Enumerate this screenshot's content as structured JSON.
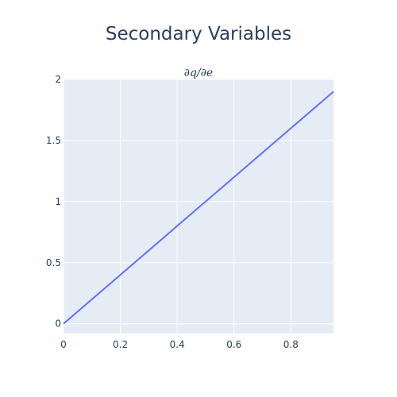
{
  "chart_data": {
    "type": "line",
    "title": "Secondary Variables",
    "subplot_title": "∂q/∂e",
    "xlabel": "",
    "ylabel": "",
    "xlim": [
      0,
      0.95
    ],
    "ylim": [
      -0.08,
      2
    ],
    "x_ticks": [
      0,
      0.2,
      0.4,
      0.6,
      0.8
    ],
    "x_tick_labels": [
      "0",
      "0.2",
      "0.4",
      "0.6",
      "0.8"
    ],
    "y_ticks": [
      0,
      0.5,
      1,
      1.5,
      2
    ],
    "y_tick_labels": [
      "0",
      "0.5",
      "1",
      "1.5",
      "2"
    ],
    "grid": true,
    "series": [
      {
        "color": "#636efa",
        "x": [
          0,
          0.01,
          0.95
        ],
        "y": [
          0,
          0.02,
          1.9
        ]
      }
    ]
  },
  "colors": {
    "plot_bg": "#e5ecf6",
    "grid": "#ffffff",
    "text": "#2a3f5f"
  }
}
